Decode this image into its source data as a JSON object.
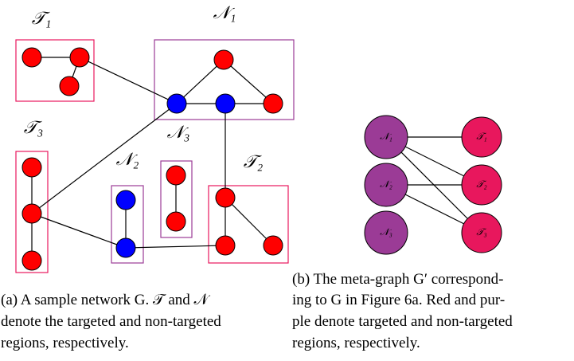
{
  "figure_a": {
    "region_labels": [
      "𝒯₁",
      "𝒩₁",
      "𝒯₃",
      "𝒩₂",
      "𝒩₃",
      "𝒯₂"
    ],
    "caption": [
      "(a) A sample network G. 𝒯 and 𝒩",
      "denote the targeted and non-targeted",
      "regions, respectively."
    ]
  },
  "figure_b": {
    "node_labels": [
      "𝒩₁",
      "𝒩₂",
      "𝒩₃",
      "𝒯₁",
      "𝒯₂",
      "𝒯₃"
    ],
    "caption": [
      "(b) The meta-graph G′ correspond-",
      "ing to G in Figure 6a. Red and pur-",
      "ple denote targeted and non-targeted",
      "regions, respectively."
    ]
  }
}
